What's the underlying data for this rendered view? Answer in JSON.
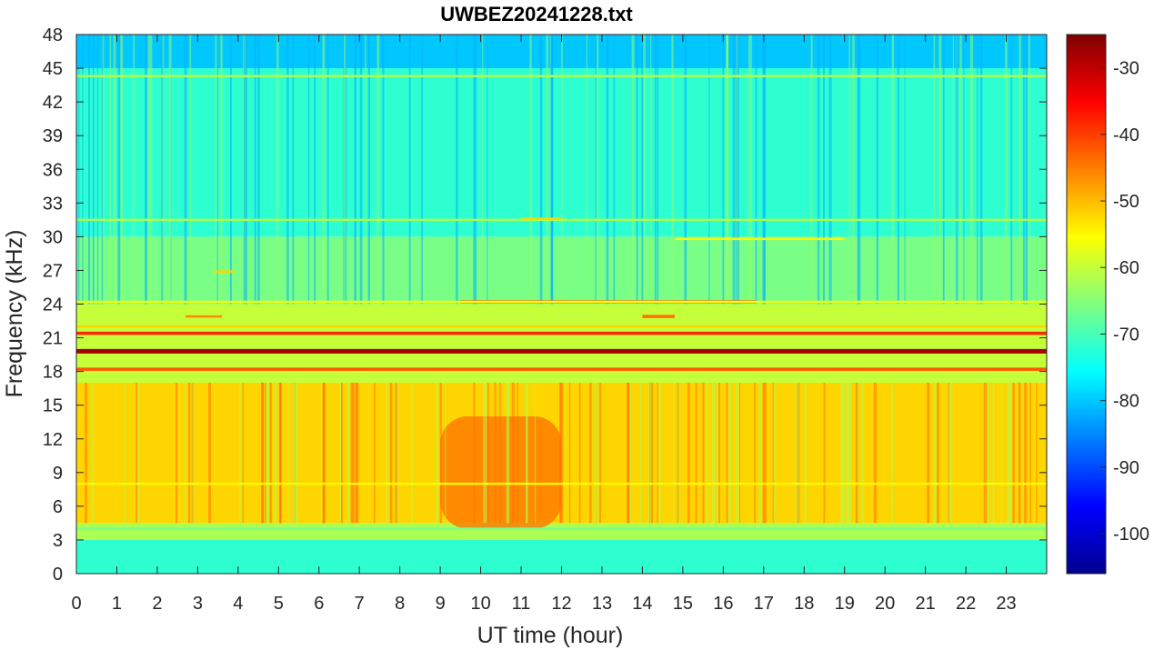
{
  "chart_data": {
    "type": "heatmap",
    "title": "UWBEZ20241228.txt",
    "xlabel": "UT time (hour)",
    "ylabel": "Frequency (kHz)",
    "xlim": [
      0,
      24
    ],
    "ylim": [
      0,
      48
    ],
    "x_ticks": [
      "0",
      "1",
      "2",
      "3",
      "4",
      "5",
      "6",
      "7",
      "8",
      "9",
      "10",
      "11",
      "12",
      "13",
      "14",
      "15",
      "16",
      "17",
      "18",
      "19",
      "20",
      "21",
      "22",
      "23"
    ],
    "y_ticks": [
      "0",
      "3",
      "6",
      "9",
      "12",
      "15",
      "18",
      "21",
      "24",
      "27",
      "30",
      "33",
      "36",
      "39",
      "42",
      "45",
      "48"
    ],
    "colorbar": {
      "colormap": "jet",
      "range": [
        -106,
        -25
      ],
      "ticks": [
        "-100",
        "-90",
        "-80",
        "-70",
        "-60",
        "-50",
        "-40",
        "-30"
      ]
    },
    "background_levels_db": [
      {
        "freq_range_khz": [
          0,
          3
        ],
        "level": -72
      },
      {
        "freq_range_khz": [
          3,
          4.5
        ],
        "level": -62
      },
      {
        "freq_range_khz": [
          4.5,
          17
        ],
        "level": -52
      },
      {
        "freq_range_khz": [
          17,
          24
        ],
        "level": -60
      },
      {
        "freq_range_khz": [
          24,
          30
        ],
        "level": -66
      },
      {
        "freq_range_khz": [
          30,
          45
        ],
        "level": -72
      },
      {
        "freq_range_khz": [
          45,
          48
        ],
        "level": -80
      }
    ],
    "enhanced_emission": {
      "time_range_hour": [
        9,
        12
      ],
      "freq_range_khz": [
        4,
        14
      ],
      "level": -44
    },
    "narrowband_lines": [
      {
        "freq_khz": 19.8,
        "level": -28,
        "time_range_hour": [
          0,
          24
        ]
      },
      {
        "freq_khz": 21.4,
        "level": -38,
        "time_range_hour": [
          0,
          24
        ]
      },
      {
        "freq_khz": 18.2,
        "level": -42,
        "time_range_hour": [
          0,
          24
        ]
      },
      {
        "freq_khz": 24.2,
        "level": -42,
        "time_range_hour": [
          9.5,
          16.8
        ]
      },
      {
        "freq_khz": 24.2,
        "level": -56,
        "time_range_hour": [
          0,
          24
        ]
      },
      {
        "freq_khz": 22.0,
        "level": -52,
        "time_range_hour": [
          0,
          24
        ]
      },
      {
        "freq_khz": 44.3,
        "level": -62,
        "time_range_hour": [
          0,
          24
        ]
      },
      {
        "freq_khz": 31.5,
        "level": -62,
        "time_range_hour": [
          0,
          24
        ]
      },
      {
        "freq_khz": 29.8,
        "level": -55,
        "time_range_hour": [
          14.8,
          19
        ]
      },
      {
        "freq_khz": 26.9,
        "level": -52,
        "time_range_hour": [
          3.4,
          3.9
        ]
      },
      {
        "freq_khz": 22.9,
        "level": -46,
        "time_range_hour": [
          2.7,
          3.6
        ]
      },
      {
        "freq_khz": 31.6,
        "level": -52,
        "time_range_hour": [
          11,
          12
        ]
      },
      {
        "freq_khz": 22.9,
        "level": -44,
        "time_range_hour": [
          14,
          14.8
        ]
      },
      {
        "freq_khz": 8.0,
        "level": -55,
        "time_range_hour": [
          0,
          24
        ]
      },
      {
        "freq_khz": 4.0,
        "level": -66,
        "time_range_hour": [
          0,
          24
        ]
      }
    ]
  }
}
